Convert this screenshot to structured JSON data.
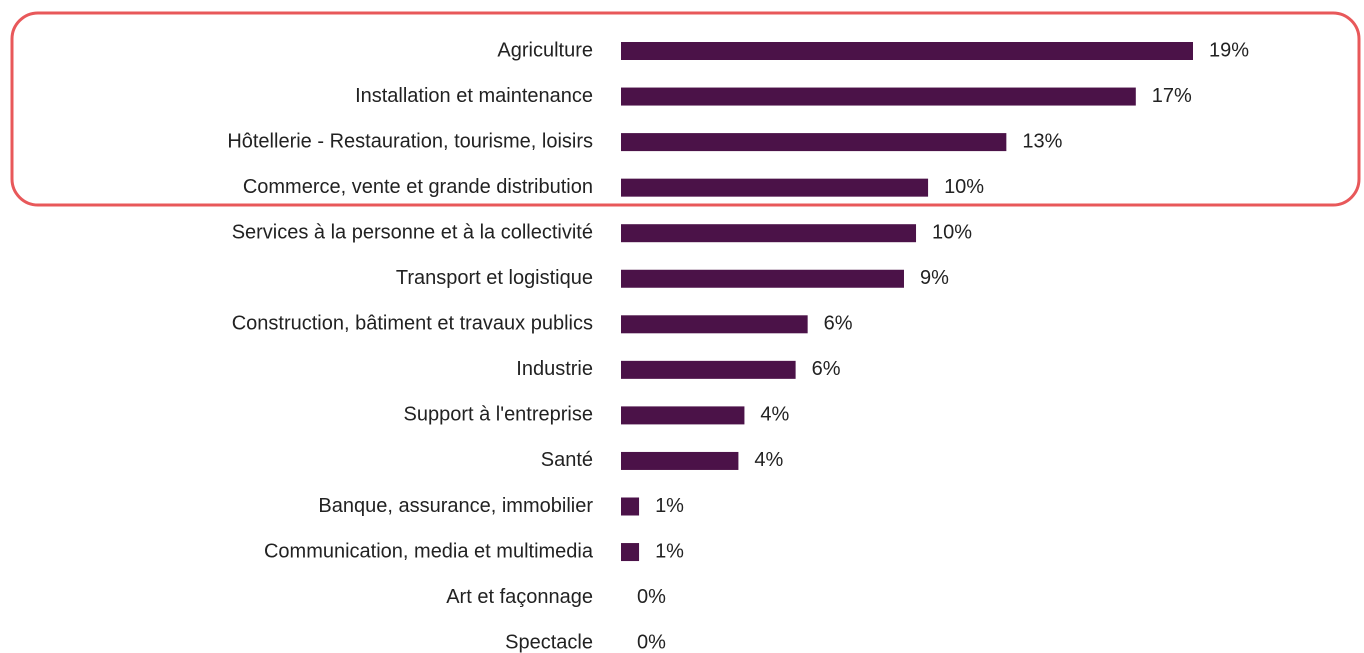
{
  "chart_data": {
    "type": "bar",
    "orientation": "horizontal",
    "color": "#4b1248",
    "categories": [
      "Agriculture",
      "Installation et maintenance",
      "Hôtellerie - Restauration, tourisme, loisirs",
      "Commerce, vente et grande distribution",
      "Services à la personne et à la collectivité",
      "Transport et logistique",
      "Construction, bâtiment et travaux publics",
      "Industrie",
      "Support à l'entreprise",
      "Santé",
      "Banque, assurance, immobilier",
      "Communication, media et multimedia",
      "Art et façonnage",
      "Spectacle"
    ],
    "values": [
      19,
      17.1,
      12.8,
      10.2,
      9.8,
      9.4,
      6.2,
      5.8,
      4.1,
      3.9,
      0.6,
      0.6,
      0,
      0
    ],
    "value_labels": [
      "19%",
      "17%",
      "13%",
      "10%",
      "10%",
      "9%",
      "6%",
      "6%",
      "4%",
      "4%",
      "1%",
      "1%",
      "0%",
      "0%"
    ]
  }
}
